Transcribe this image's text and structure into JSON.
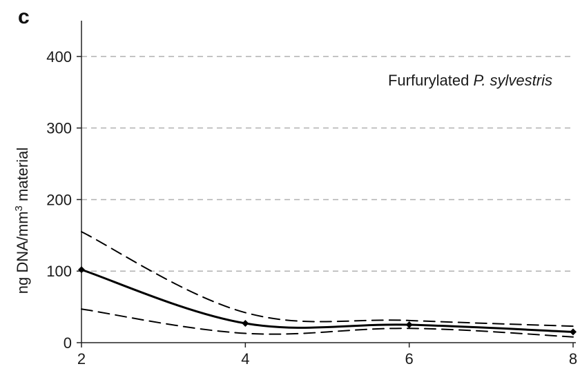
{
  "panel_label": "c",
  "chart_data": {
    "type": "line",
    "title": "",
    "xlabel": "",
    "ylabel": {
      "prefix": "ng DNA/mm",
      "superscript": "3",
      "suffix": " material"
    },
    "annotation": {
      "normal": "Furfurylated ",
      "italic": "P. sylvestris"
    },
    "xlim": [
      2,
      8
    ],
    "ylim": [
      0,
      450
    ],
    "x_ticks": [
      2,
      4,
      6,
      8
    ],
    "y_ticks": [
      0,
      100,
      200,
      300,
      400
    ],
    "grid": "horizontal-dashed",
    "x": [
      2,
      4,
      6,
      8
    ],
    "series": [
      {
        "role": "mean",
        "style": "solid",
        "markers": true,
        "values": [
          102,
          27,
          25,
          15
        ]
      },
      {
        "role": "upper-bound",
        "style": "dashed",
        "markers": false,
        "values": [
          155,
          42,
          31,
          23
        ]
      },
      {
        "role": "lower-bound",
        "style": "dashed",
        "markers": false,
        "values": [
          47,
          13,
          20,
          8
        ]
      }
    ],
    "colors": {
      "line": "#000000",
      "grid": "#b0b0b0",
      "axis": "#222222"
    }
  }
}
